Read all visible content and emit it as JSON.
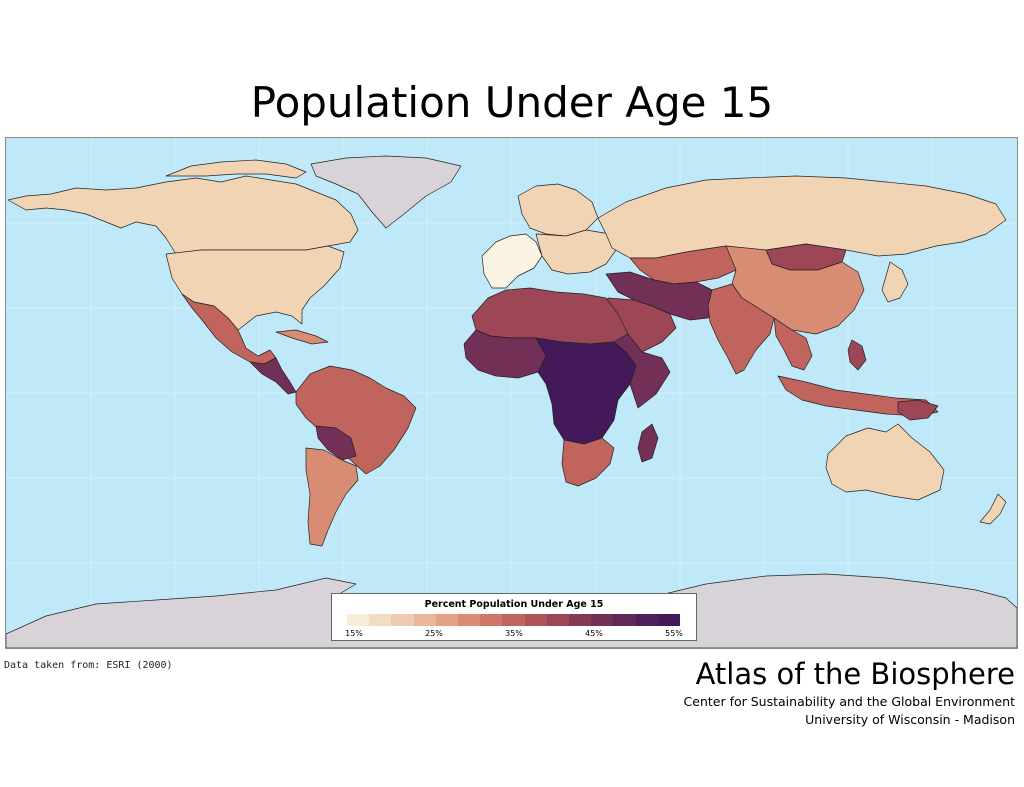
{
  "title": "Population Under Age 15",
  "legend": {
    "title": "Percent Population Under Age 15",
    "ticks": [
      "15%",
      "25%",
      "35%",
      "45%",
      "55%"
    ],
    "ramp": [
      "#f8ecd9",
      "#f3dcc4",
      "#eecbae",
      "#e8b898",
      "#e1a184",
      "#d98c74",
      "#cf7766",
      "#c1645d",
      "#b05458",
      "#9c4656",
      "#873a56",
      "#733056",
      "#612757",
      "#501f59",
      "#44195a"
    ]
  },
  "colors": {
    "ocean": "#bfe8f8",
    "no_data": "#d8d3d9",
    "p15": "#faf3e2",
    "p20": "#f1d4b4",
    "p25": "#e8b898",
    "p30": "#d98c74",
    "p35": "#c1645d",
    "p40": "#9c4656",
    "p45": "#733056",
    "p50": "#5a2258",
    "p55": "#44195a"
  },
  "source": "Data taken from:  ESRI (2000)",
  "atlas": {
    "name": "Atlas of the Biosphere",
    "line1": "Center for Sustainability and the Global Environment",
    "line2": "University of Wisconsin - Madison"
  }
}
